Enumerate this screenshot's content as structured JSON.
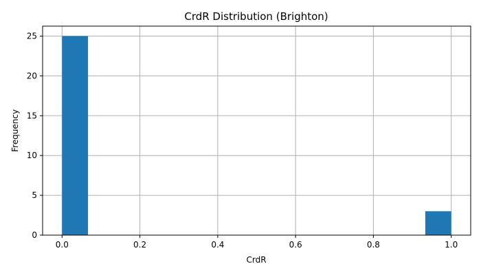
{
  "chart_data": {
    "type": "bar",
    "title": "CrdR Distribution (Brighton)",
    "xlabel": "CrdR",
    "ylabel": "Frequency",
    "xlim": [
      -0.05,
      1.05
    ],
    "ylim": [
      0,
      26.25
    ],
    "xticks": [
      "0.0",
      "0.2",
      "0.4",
      "0.6",
      "0.8",
      "1.0"
    ],
    "xtick_values": [
      0.0,
      0.2,
      0.4,
      0.6,
      0.8,
      1.0
    ],
    "yticks": [
      "0",
      "5",
      "10",
      "15",
      "20",
      "25"
    ],
    "ytick_values": [
      0,
      5,
      10,
      15,
      20,
      25
    ],
    "grid": true,
    "bar_color": "#1f77b4",
    "bins": [
      {
        "x_start": 0.0,
        "x_end": 0.0667,
        "count": 25
      },
      {
        "x_start": 0.9333,
        "x_end": 1.0,
        "count": 3
      }
    ]
  }
}
